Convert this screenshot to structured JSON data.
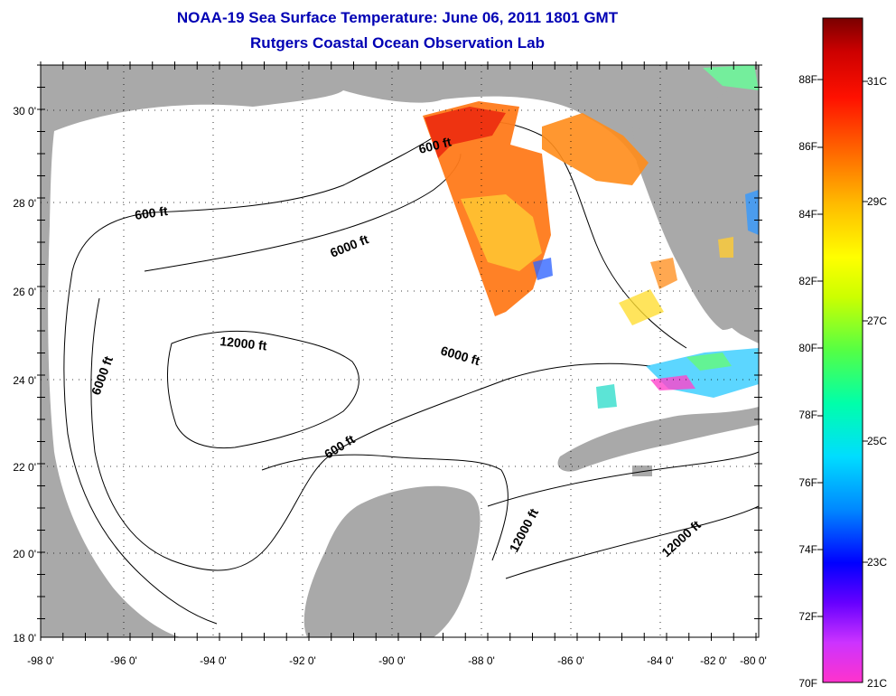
{
  "header": {
    "title": "NOAA-19 Sea Surface Temperature:  June 06, 2011 1801 GMT",
    "subtitle": "Rutgers Coastal Ocean Observation Lab"
  },
  "map": {
    "lon_labels": [
      "-98 0'",
      "-96 0'",
      "-94 0'",
      "-92 0'",
      "-90 0'",
      "-88 0'",
      "-86 0'",
      "-84 0'",
      "-82 0'",
      "-80 0'"
    ],
    "lat_labels": [
      "30 0'",
      "28 0'",
      "26 0'",
      "24 0'",
      "22 0'",
      "20 0'",
      "18 0'"
    ],
    "contour_labels": [
      "600 ft",
      "600 ft",
      "6000 ft",
      "12000 ft",
      "6000 ft",
      "6000 ft",
      "600 ft",
      "12000 ft",
      "12000 ft"
    ],
    "land_color": "#a9a9a9",
    "ocean_color": "#ffffff"
  },
  "colorbar": {
    "f_labels": [
      "88F",
      "86F",
      "84F",
      "82F",
      "80F",
      "78F",
      "76F",
      "74F",
      "72F",
      "70F"
    ],
    "c_labels": [
      "31C",
      "29C",
      "27C",
      "25C",
      "23C",
      "21C"
    ],
    "gradient": [
      "#ff33cc",
      "#9900ff",
      "#0000ff",
      "#0066ff",
      "#00ccff",
      "#00ffcc",
      "#33ff66",
      "#ccff00",
      "#ffff00",
      "#ffcc00",
      "#ff8800",
      "#ff3300",
      "#ee0000",
      "#aa0000",
      "#7a0000"
    ]
  }
}
